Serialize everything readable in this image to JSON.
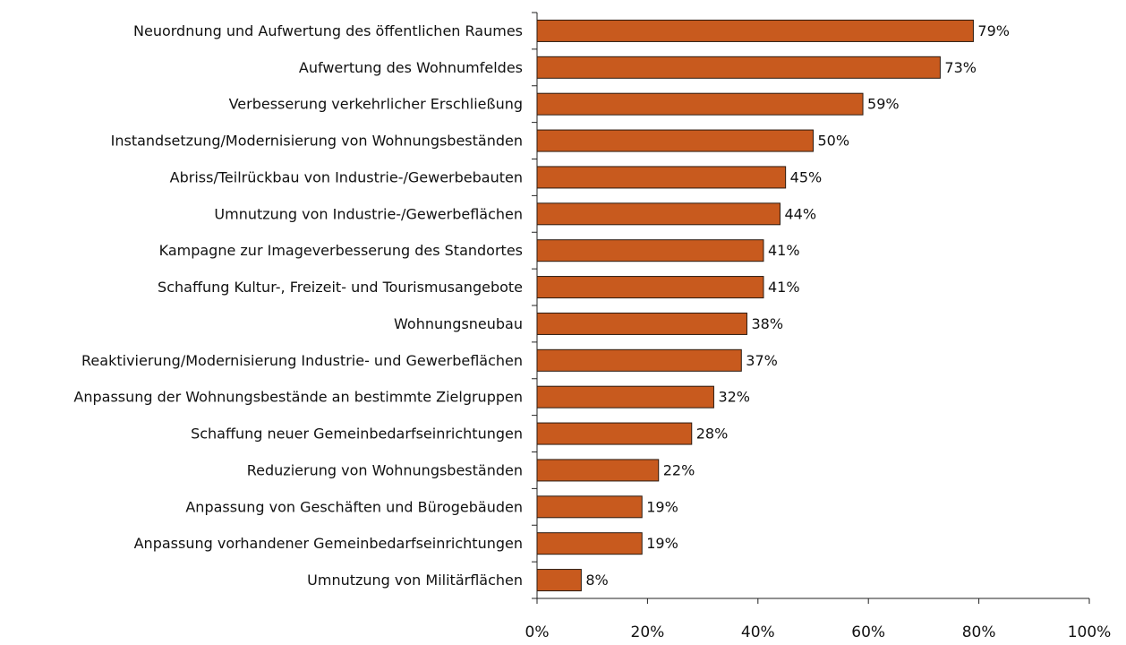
{
  "chart_data": {
    "type": "bar",
    "orientation": "horizontal",
    "categories": [
      "Neuordnung und Aufwertung des öffentlichen Raumes",
      "Aufwertung des Wohnumfeldes",
      "Verbesserung verkehrlicher Erschließung",
      "Instandsetzung/Modernisierung von Wohnungsbeständen",
      "Abriss/Teilrückbau von Industrie-/Gewerbebauten",
      "Umnutzung von Industrie-/Gewerbeflächen",
      "Kampagne zur Imageverbesserung des Standortes",
      "Schaffung Kultur-, Freizeit- und Tourismusangebote",
      "Wohnungsneubau",
      "Reaktivierung/Modernisierung Industrie- und Gewerbeflächen",
      "Anpassung der Wohnungsbestände an bestimmte Zielgruppen",
      "Schaffung neuer Gemeinbedarfseinrichtungen",
      "Reduzierung von Wohnungsbeständen",
      "Anpassung von Geschäften und Bürogebäuden",
      "Anpassung vorhandener Gemeinbedarfseinrichtungen",
      "Umnutzung von Militärflächen"
    ],
    "values": [
      79,
      73,
      59,
      50,
      45,
      44,
      41,
      41,
      38,
      37,
      32,
      28,
      22,
      19,
      19,
      8
    ],
    "value_labels": [
      "79%",
      "73%",
      "59%",
      "50%",
      "45%",
      "44%",
      "41%",
      "41%",
      "38%",
      "37%",
      "32%",
      "28%",
      "22%",
      "19%",
      "19%",
      "8%"
    ],
    "color": "#c85a1e",
    "xlim": [
      0,
      100
    ],
    "xticks": [
      {
        "value": 0,
        "label": "0%"
      },
      {
        "value": 20,
        "label": "20%"
      },
      {
        "value": 40,
        "label": "40%"
      },
      {
        "value": 60,
        "label": "60%"
      },
      {
        "value": 80,
        "label": "80%"
      },
      {
        "value": 100,
        "label": "100%"
      }
    ],
    "grid": false
  }
}
